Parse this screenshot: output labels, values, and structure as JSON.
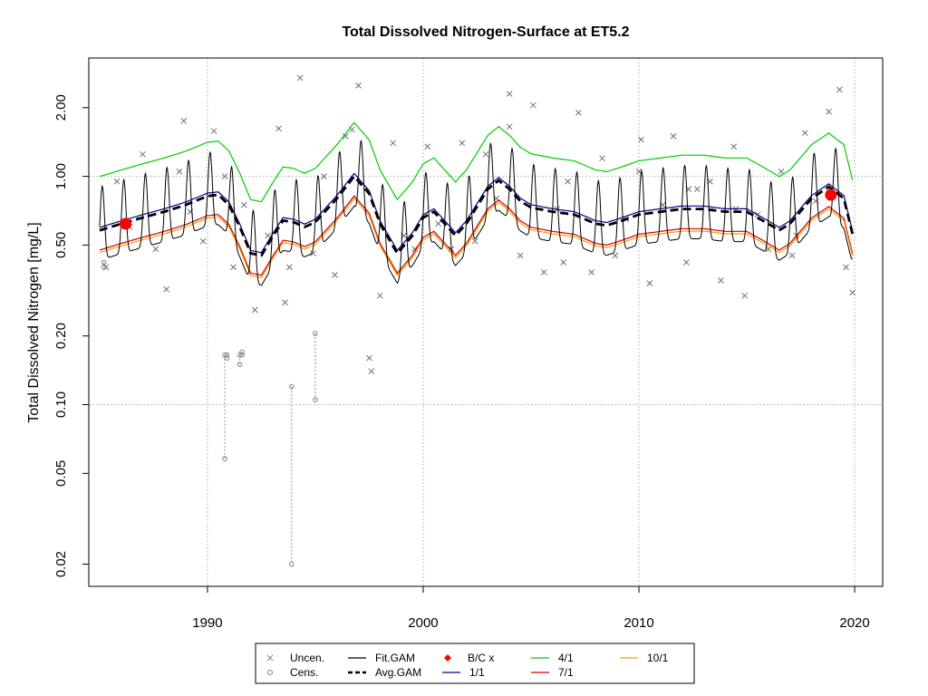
{
  "chart_data": {
    "type": "line",
    "title": "Total Dissolved Nitrogen-Surface at ET5.2",
    "xlabel": "",
    "ylabel": "Total Dissolved Nitrogen [mg/L]",
    "y_scale": "log",
    "xlim": [
      1984.5,
      2021.3
    ],
    "ylim": [
      0.016,
      3.3
    ],
    "x_ticks": [
      1990,
      2000,
      2010,
      2020
    ],
    "x_tick_labels": [
      "1990",
      "2000",
      "2010",
      "2020"
    ],
    "y_ticks": [
      0.02,
      0.05,
      0.1,
      0.2,
      0.5,
      1.0,
      2.0
    ],
    "y_tick_labels": [
      "0.02",
      "0.05",
      "0.10",
      "0.20",
      "0.50",
      "1.00",
      "2.00"
    ],
    "grid": "dotted reference lines at x=1990, 2000, 2010, 2020 and y=0.10, 1.00",
    "legend": {
      "placement": "bottom-center",
      "entries": [
        {
          "label": "Uncen.",
          "kind": "cross",
          "color": "#808080"
        },
        {
          "label": "Cens.",
          "kind": "circle",
          "color": "#808080"
        },
        {
          "label": "Fit.GAM",
          "kind": "line",
          "color": "#000000"
        },
        {
          "label": "Avg.GAM",
          "kind": "dashed",
          "color": "#000000"
        },
        {
          "label": "B/C x",
          "kind": "diamond",
          "color": "#ff0000"
        },
        {
          "label": "1/1",
          "kind": "line",
          "color": "#00008b"
        },
        {
          "label": "4/1",
          "kind": "line",
          "color": "#00cc00"
        },
        {
          "label": "7/1",
          "kind": "line",
          "color": "#cc0000"
        },
        {
          "label": "10/1",
          "kind": "line",
          "color": "#ff9900"
        }
      ]
    },
    "avg_gam": {
      "name": "Avg.GAM",
      "color": "#000000",
      "x": [
        1985.0,
        1986.0,
        1987.0,
        1988.0,
        1989.0,
        1990.0,
        1990.5,
        1991.0,
        1991.5,
        1992.0,
        1992.5,
        1993.0,
        1993.5,
        1994.0,
        1994.5,
        1995.0,
        1996.0,
        1996.8,
        1997.5,
        1998.0,
        1998.8,
        1999.5,
        2000.0,
        2000.5,
        2001.0,
        2001.5,
        2002.0,
        2003.0,
        2003.5,
        2004.0,
        2004.5,
        2005.0,
        2006.0,
        2007.0,
        2008.0,
        2008.5,
        2009.0,
        2010.0,
        2011.0,
        2012.0,
        2013.0,
        2014.0,
        2015.0,
        2016.0,
        2016.5,
        2017.0,
        2018.0,
        2018.8,
        2019.5,
        2019.9
      ],
      "y": [
        0.58,
        0.62,
        0.66,
        0.7,
        0.75,
        0.82,
        0.83,
        0.75,
        0.6,
        0.46,
        0.45,
        0.54,
        0.64,
        0.63,
        0.6,
        0.63,
        0.8,
        1.0,
        0.84,
        0.62,
        0.46,
        0.55,
        0.66,
        0.7,
        0.62,
        0.55,
        0.62,
        0.88,
        0.96,
        0.88,
        0.78,
        0.73,
        0.7,
        0.68,
        0.62,
        0.61,
        0.63,
        0.68,
        0.7,
        0.72,
        0.72,
        0.7,
        0.7,
        0.62,
        0.58,
        0.62,
        0.8,
        0.9,
        0.8,
        0.56
      ]
    },
    "series_seasonal": [
      {
        "name": "1/1",
        "color": "#00008b",
        "ratio": 1.03
      },
      {
        "name": "4/1",
        "color": "#00cc00",
        "ratio": 1.72
      },
      {
        "name": "7/1",
        "color": "#cc0000",
        "ratio": 0.82
      },
      {
        "name": "10/1",
        "color": "#ff9900",
        "ratio": 0.8
      }
    ],
    "fit_gam": {
      "name": "Fit.GAM",
      "color": "#000000",
      "peak_ratio": 1.55,
      "trough_ratio": 0.74,
      "peak_day": 45
    },
    "bc_points": {
      "name": "B/C x",
      "color": "#ff0000",
      "x": [
        1986.2,
        2018.9
      ],
      "y": [
        0.62,
        0.83
      ]
    },
    "uncensored": {
      "name": "Uncen.",
      "color": "#808080",
      "x": [
        1985.3,
        1985.8,
        1986.4,
        1987.0,
        1987.6,
        1988.1,
        1988.7,
        1989.2,
        1989.8,
        1990.3,
        1990.8,
        1991.2,
        1991.7,
        1992.2,
        1992.8,
        1993.3,
        1993.8,
        1994.3,
        1994.9,
        1995.4,
        1995.9,
        1996.4,
        1997.0,
        1997.5,
        1998.0,
        1998.6,
        1999.1,
        1999.6,
        2000.2,
        2000.7,
        2001.3,
        2001.8,
        2002.4,
        2002.9,
        2003.4,
        2004.0,
        2004.5,
        2005.1,
        2005.6,
        2006.2,
        2006.7,
        2007.2,
        2007.8,
        2008.3,
        2008.9,
        2009.4,
        2010.0,
        2010.5,
        2011.1,
        2011.6,
        2012.2,
        2012.7,
        2013.3,
        2013.8,
        2014.4,
        2014.9,
        2015.5,
        2016.0,
        2016.6,
        2017.1,
        2017.7,
        2018.2,
        2018.8,
        2019.3,
        2019.9,
        1988.9,
        1993.6,
        1996.7,
        1997.6,
        2004.0,
        2006.5,
        2010.1,
        2012.3,
        2014.5,
        2017.3,
        2019.6
      ],
      "y": [
        0.4,
        0.95,
        0.6,
        1.25,
        0.48,
        0.32,
        1.05,
        0.7,
        0.52,
        1.58,
        1.0,
        0.4,
        0.75,
        0.26,
        0.55,
        1.62,
        0.4,
        2.7,
        0.46,
        1.0,
        0.37,
        1.5,
        2.5,
        0.16,
        0.3,
        1.4,
        0.55,
        0.48,
        1.35,
        0.62,
        0.48,
        1.4,
        0.52,
        1.25,
        0.8,
        2.3,
        0.45,
        2.05,
        0.38,
        0.72,
        0.95,
        1.9,
        0.38,
        1.2,
        0.45,
        0.65,
        1.05,
        0.34,
        0.75,
        1.5,
        0.42,
        0.88,
        0.95,
        0.35,
        1.35,
        0.3,
        0.68,
        0.48,
        1.05,
        0.45,
        1.55,
        0.78,
        1.92,
        2.4,
        0.31,
        1.75,
        0.28,
        1.6,
        0.14,
        1.65,
        0.42,
        1.45,
        0.88,
        0.72,
        0.55,
        0.4
      ]
    },
    "censored": {
      "name": "Cens.",
      "color": "#808080",
      "x": [
        1985.2,
        1990.8,
        1991.5,
        1993.9,
        1995.0,
        1990.9,
        1991.6
      ],
      "y": [
        0.4,
        0.058,
        0.15,
        0.02,
        0.105,
        0.16,
        0.165
      ],
      "upper": [
        0.42,
        0.165,
        0.165,
        0.12,
        0.205,
        0.165,
        0.17
      ]
    }
  }
}
